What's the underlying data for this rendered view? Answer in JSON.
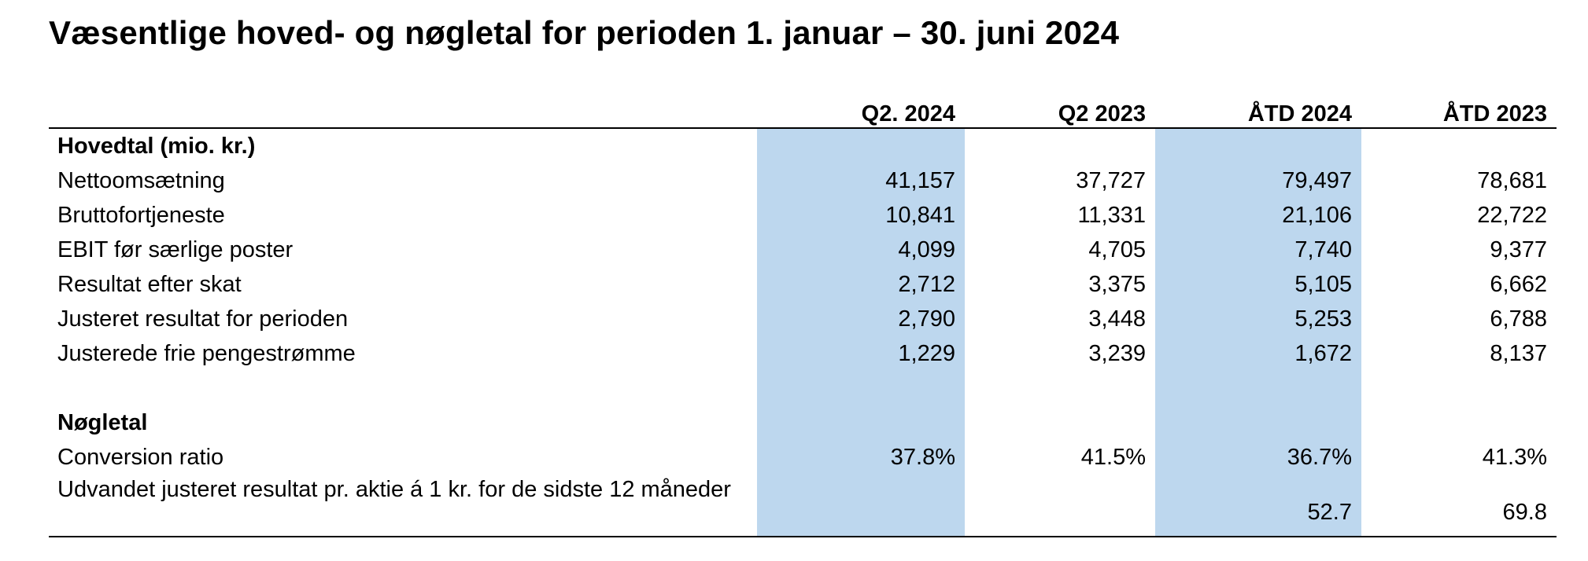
{
  "title": "Væsentlige hoved- og nøgletal for perioden 1. januar – 30. juni 2024",
  "table": {
    "highlight_color": "#BDD7EE",
    "columns": [
      "Q2. 2024",
      "Q2 2023",
      "ÅTD 2024",
      "ÅTD 2023"
    ],
    "rows": [
      {
        "label": "Hovedtal (mio. kr.)",
        "values": [
          "",
          "",
          "",
          ""
        ]
      },
      {
        "label": "Nettoomsætning",
        "values": [
          "41,157",
          "37,727",
          "79,497",
          "78,681"
        ]
      },
      {
        "label": "Bruttofortjeneste",
        "values": [
          "10,841",
          "11,331",
          "21,106",
          "22,722"
        ]
      },
      {
        "label": "EBIT før særlige poster",
        "values": [
          "4,099",
          "4,705",
          "7,740",
          "9,377"
        ]
      },
      {
        "label": "Resultat efter skat",
        "values": [
          "2,712",
          "3,375",
          "5,105",
          "6,662"
        ]
      },
      {
        "label": "Justeret resultat for perioden",
        "values": [
          "2,790",
          "3,448",
          "5,253",
          "6,788"
        ]
      },
      {
        "label": "Justerede frie pengestrømme",
        "values": [
          "1,229",
          "3,239",
          "1,672",
          "8,137"
        ]
      },
      {
        "label": "",
        "values": [
          "",
          "",
          "",
          ""
        ]
      },
      {
        "label": "Nøgletal",
        "values": [
          "",
          "",
          "",
          ""
        ]
      },
      {
        "label": "Conversion ratio",
        "values": [
          "37.8%",
          "41.5%",
          "36.7%",
          "41.3%"
        ]
      },
      {
        "label": "Udvandet justeret resultat pr. aktie á 1 kr. for de sidste 12 måneder",
        "values": [
          "",
          "",
          "52.7",
          "69.8"
        ]
      }
    ]
  }
}
